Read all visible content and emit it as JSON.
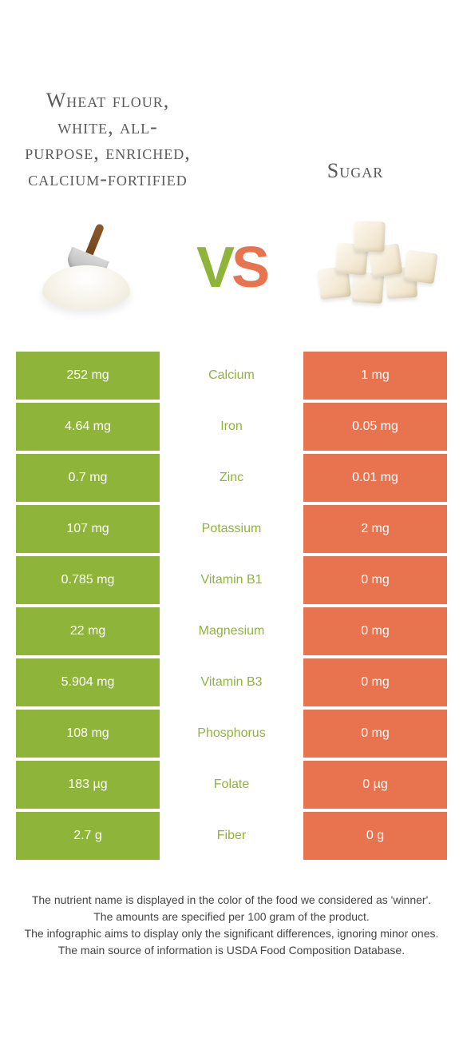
{
  "header": {
    "left_title": "Wheat flour, white, all-purpose, enriched, calcium-fortified",
    "right_title": "Sugar",
    "vs_v": "V",
    "vs_s": "S"
  },
  "colors": {
    "left": "#8fb43a",
    "right": "#e8734f",
    "background": "#ffffff",
    "text_body": "#444444"
  },
  "typography": {
    "title_fontsize": 26,
    "cell_fontsize": 16,
    "footnote_fontsize": 14,
    "vs_fontsize": 72
  },
  "table": {
    "rows": [
      {
        "left": "252 mg",
        "label": "Calcium",
        "right": "1 mg",
        "winner": "left"
      },
      {
        "left": "4.64 mg",
        "label": "Iron",
        "right": "0.05 mg",
        "winner": "left"
      },
      {
        "left": "0.7 mg",
        "label": "Zinc",
        "right": "0.01 mg",
        "winner": "left"
      },
      {
        "left": "107 mg",
        "label": "Potassium",
        "right": "2 mg",
        "winner": "left"
      },
      {
        "left": "0.785 mg",
        "label": "Vitamin B1",
        "right": "0 mg",
        "winner": "left"
      },
      {
        "left": "22 mg",
        "label": "Magnesium",
        "right": "0 mg",
        "winner": "left"
      },
      {
        "left": "5.904 mg",
        "label": "Vitamin B3",
        "right": "0 mg",
        "winner": "left"
      },
      {
        "left": "108 mg",
        "label": "Phosphorus",
        "right": "0 mg",
        "winner": "left"
      },
      {
        "left": "183 µg",
        "label": "Folate",
        "right": "0 µg",
        "winner": "left"
      },
      {
        "left": "2.7 g",
        "label": "Fiber",
        "right": "0 g",
        "winner": "left"
      }
    ]
  },
  "footnotes": {
    "line1": "The nutrient name is displayed in the color of the food we considered as 'winner'.",
    "line2": "The amounts are specified per 100 gram of the product.",
    "line3": "The infographic aims to display only the significant differences, ignoring minor ones.",
    "line4": "The main source of information is USDA Food Composition Database."
  }
}
